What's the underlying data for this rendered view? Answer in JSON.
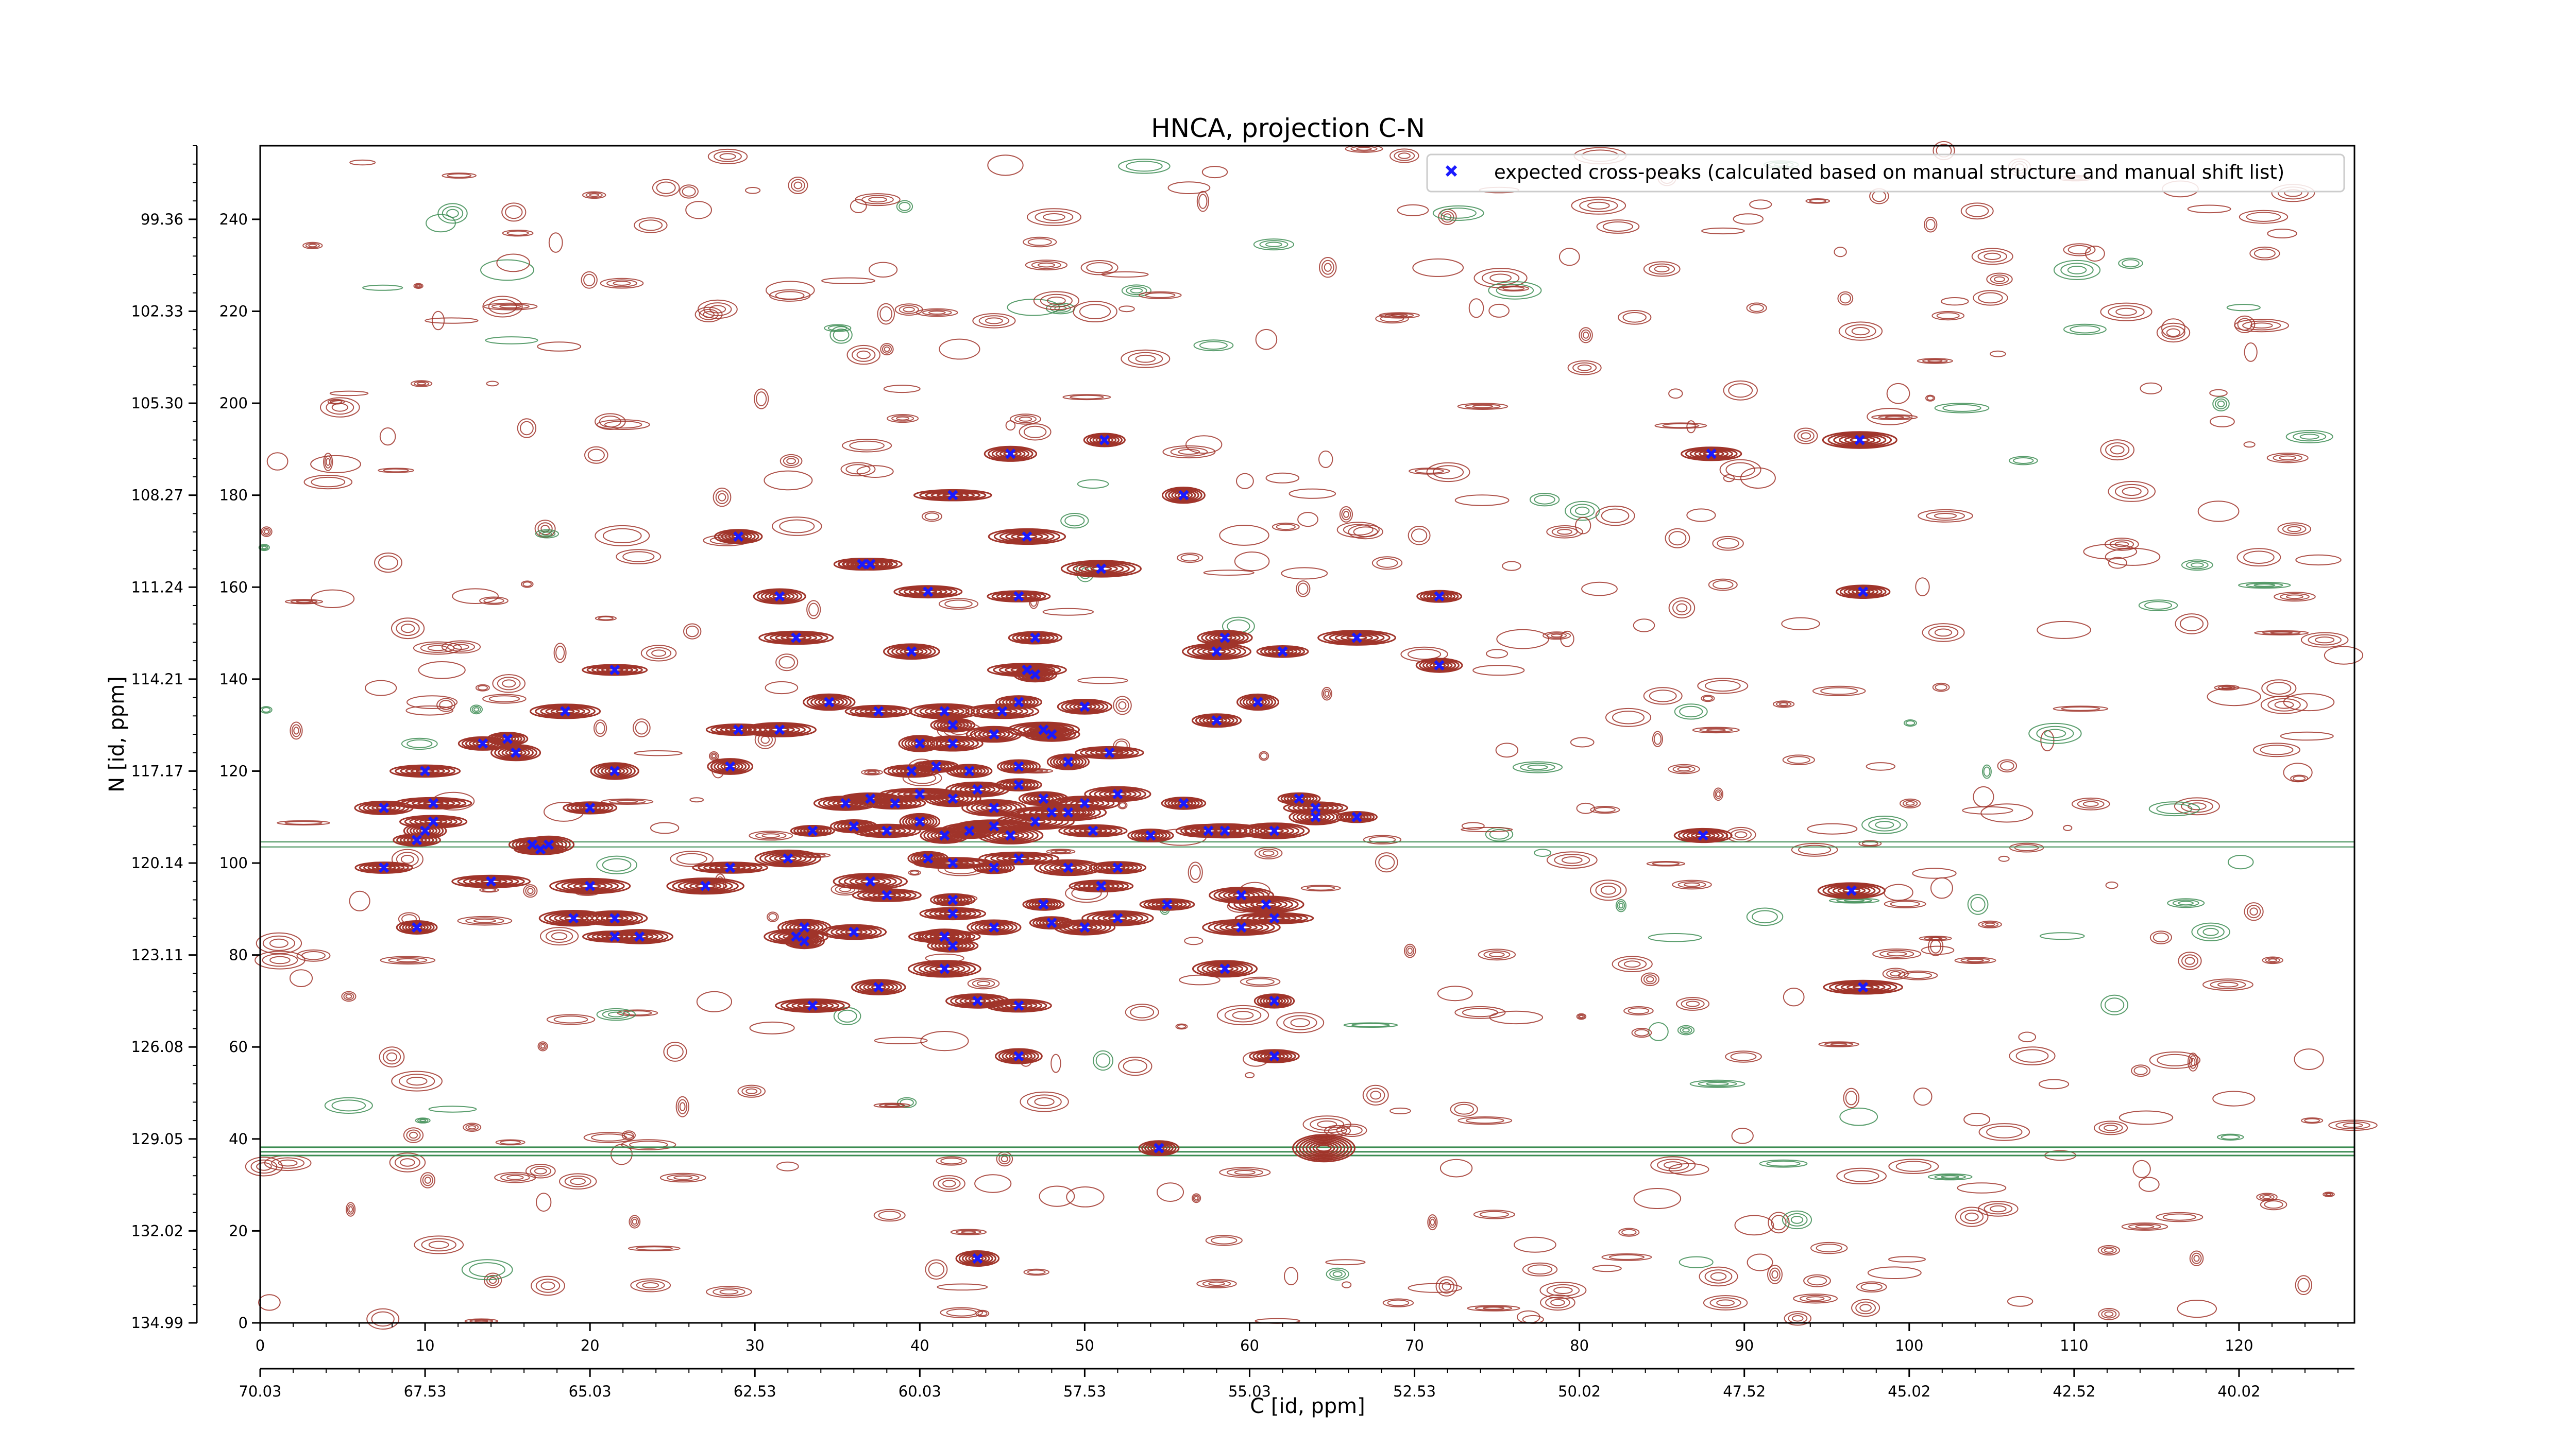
{
  "chart_data": {
    "type": "scatter",
    "title": "HNCA, projection C-N",
    "xlabel": "C [id, ppm]",
    "ylabel": "N [id, ppm]",
    "x_index_range": [
      0,
      127
    ],
    "y_index_range": [
      0,
      256
    ],
    "x_index_ticks": [
      "0",
      "10",
      "20",
      "30",
      "40",
      "50",
      "60",
      "70",
      "80",
      "90",
      "100",
      "110",
      "120"
    ],
    "y_index_ticks": [
      "0",
      "20",
      "40",
      "60",
      "80",
      "100",
      "120",
      "140",
      "160",
      "180",
      "200",
      "220",
      "240"
    ],
    "x_ppm_ticks": [
      "70.03",
      "67.53",
      "65.03",
      "62.53",
      "60.03",
      "57.53",
      "55.03",
      "52.53",
      "50.02",
      "47.52",
      "45.02",
      "42.52",
      "40.02"
    ],
    "y_ppm_ticks": [
      "134.99",
      "132.02",
      "129.05",
      "126.08",
      "123.11",
      "120.14",
      "117.17",
      "114.21",
      "111.24",
      "108.27",
      "105.30",
      "102.33",
      "99.36"
    ],
    "legend": {
      "label": "expected cross-peaks (calculated based on manual structure and manual shift list)",
      "placement": "top-right"
    },
    "colors": {
      "positive_contour": "#a0342a",
      "negative_contour": "#3c8c52",
      "marker": "#1a1aff"
    },
    "series": [
      {
        "name": "expected cross-peaks (calculated based on manual structure and manual shift list)",
        "points": [
          [
            45.5,
            189
          ],
          [
            51.2,
            192
          ],
          [
            88,
            189
          ],
          [
            97,
            192
          ],
          [
            42,
            180
          ],
          [
            56,
            180
          ],
          [
            29,
            171
          ],
          [
            46.5,
            171
          ],
          [
            36.5,
            165
          ],
          [
            37,
            165
          ],
          [
            51,
            164
          ],
          [
            31.5,
            158
          ],
          [
            40.5,
            159
          ],
          [
            46,
            158
          ],
          [
            71.5,
            158
          ],
          [
            97.2,
            159
          ],
          [
            32.5,
            149
          ],
          [
            47,
            149
          ],
          [
            58.5,
            149
          ],
          [
            66.5,
            149
          ],
          [
            39.5,
            146
          ],
          [
            58,
            146
          ],
          [
            62,
            146
          ],
          [
            21.5,
            142
          ],
          [
            46.5,
            142
          ],
          [
            47,
            141
          ],
          [
            71.5,
            143
          ],
          [
            34.5,
            135
          ],
          [
            46,
            135
          ],
          [
            50,
            134
          ],
          [
            60.5,
            135
          ],
          [
            18.5,
            133
          ],
          [
            37.5,
            133
          ],
          [
            41.5,
            133
          ],
          [
            45,
            133
          ],
          [
            29,
            129
          ],
          [
            31.5,
            129
          ],
          [
            42,
            130
          ],
          [
            44.5,
            128
          ],
          [
            47.5,
            129
          ],
          [
            48,
            128
          ],
          [
            58,
            131
          ],
          [
            13.5,
            126
          ],
          [
            15,
            127
          ],
          [
            15.5,
            124
          ],
          [
            40,
            126
          ],
          [
            42,
            126
          ],
          [
            51.5,
            124
          ],
          [
            10,
            120
          ],
          [
            21.5,
            120
          ],
          [
            28.5,
            121
          ],
          [
            39.5,
            120
          ],
          [
            41,
            121
          ],
          [
            43,
            120
          ],
          [
            46,
            121
          ],
          [
            49,
            122
          ],
          [
            7.5,
            112
          ],
          [
            10.5,
            113
          ],
          [
            20,
            112
          ],
          [
            35.5,
            113
          ],
          [
            37,
            114
          ],
          [
            38.5,
            113
          ],
          [
            40,
            115
          ],
          [
            42,
            114
          ],
          [
            43.5,
            116
          ],
          [
            44.5,
            112
          ],
          [
            46,
            117
          ],
          [
            47.5,
            114
          ],
          [
            49,
            111
          ],
          [
            50,
            113
          ],
          [
            52,
            115
          ],
          [
            56,
            113
          ],
          [
            63,
            114
          ],
          [
            64,
            112
          ],
          [
            10,
            107
          ],
          [
            10.5,
            109
          ],
          [
            9.5,
            105
          ],
          [
            16.5,
            104
          ],
          [
            17,
            103
          ],
          [
            17.5,
            104
          ],
          [
            33.5,
            107
          ],
          [
            36,
            108
          ],
          [
            38,
            107
          ],
          [
            40,
            109
          ],
          [
            41.5,
            106
          ],
          [
            43,
            107
          ],
          [
            44.5,
            108
          ],
          [
            45.5,
            106
          ],
          [
            47,
            109
          ],
          [
            48,
            111
          ],
          [
            50.5,
            107
          ],
          [
            54,
            106
          ],
          [
            57.5,
            107
          ],
          [
            58.5,
            107
          ],
          [
            61.5,
            107
          ],
          [
            64,
            110
          ],
          [
            66.5,
            110
          ],
          [
            7.5,
            99
          ],
          [
            14,
            96
          ],
          [
            28.5,
            99
          ],
          [
            32,
            101
          ],
          [
            37,
            96
          ],
          [
            40.5,
            101
          ],
          [
            42,
            100
          ],
          [
            44.5,
            99
          ],
          [
            46,
            101
          ],
          [
            49,
            99
          ],
          [
            52,
            99
          ],
          [
            87.5,
            106
          ],
          [
            20,
            95
          ],
          [
            27,
            95
          ],
          [
            38,
            93
          ],
          [
            42,
            92
          ],
          [
            47.5,
            91
          ],
          [
            51,
            95
          ],
          [
            55,
            91
          ],
          [
            59.5,
            93
          ],
          [
            61,
            91
          ],
          [
            96.5,
            94
          ],
          [
            9.5,
            86
          ],
          [
            19,
            88
          ],
          [
            21.5,
            88
          ],
          [
            21.5,
            84
          ],
          [
            23,
            84
          ],
          [
            32.5,
            84
          ],
          [
            33,
            86
          ],
          [
            36,
            85
          ],
          [
            41.5,
            84
          ],
          [
            42,
            89
          ],
          [
            44.5,
            86
          ],
          [
            48,
            87
          ],
          [
            50,
            86
          ],
          [
            52,
            88
          ],
          [
            59.5,
            86
          ],
          [
            61.5,
            88
          ],
          [
            33,
            83
          ],
          [
            42,
            82
          ],
          [
            41.5,
            84
          ],
          [
            37.5,
            73
          ],
          [
            41.5,
            77
          ],
          [
            58.5,
            77
          ],
          [
            97.2,
            73
          ],
          [
            33.5,
            69
          ],
          [
            43.5,
            70
          ],
          [
            46,
            69
          ],
          [
            61.5,
            70
          ],
          [
            46,
            58
          ],
          [
            61.5,
            58
          ],
          [
            54.5,
            38
          ],
          [
            43.5,
            14
          ]
        ]
      }
    ]
  }
}
